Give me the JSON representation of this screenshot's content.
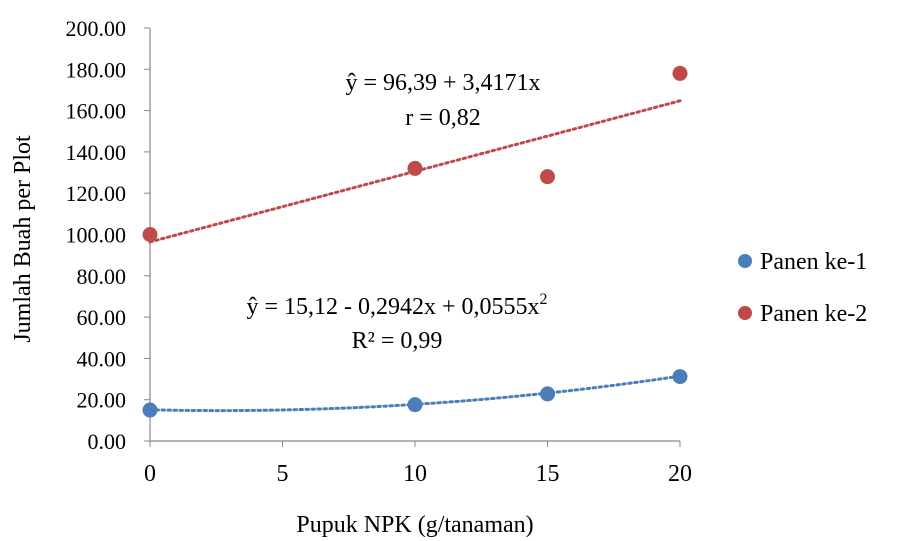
{
  "chart_data": {
    "type": "scatter",
    "xlabel": "Pupuk NPK (g/tanaman)",
    "ylabel": "Jumlah Buah per Plot",
    "xlim": [
      0,
      20
    ],
    "ylim": [
      0,
      200
    ],
    "x_ticks": [
      0,
      5,
      10,
      15,
      20
    ],
    "y_ticks": [
      0,
      20,
      40,
      60,
      80,
      100,
      120,
      140,
      160,
      180,
      200
    ],
    "x_tick_labels": [
      "0",
      "5",
      "10",
      "15",
      "20"
    ],
    "y_tick_labels": [
      "0.00",
      "20.00",
      "40.00",
      "60.00",
      "80.00",
      "100.00",
      "120.00",
      "140.00",
      "160.00",
      "180.00",
      "200.00"
    ],
    "grid": false,
    "legend_position": "right",
    "series": [
      {
        "name": "Panen ke-1",
        "color": "#4a7ebb",
        "x": [
          0,
          10,
          15,
          20
        ],
        "y": [
          15.0,
          17.6,
          22.8,
          31.2
        ],
        "trendline": {
          "type": "polynomial",
          "coefficients": [
            15.12,
            -0.2942,
            0.0555
          ],
          "style": "dotted"
        }
      },
      {
        "name": "Panen ke-2",
        "color": "#be4b48",
        "x": [
          0,
          10,
          15,
          20
        ],
        "y": [
          100.0,
          132.0,
          128.0,
          178.0
        ],
        "trendline": {
          "type": "linear",
          "coefficients": [
            96.39,
            3.4171
          ],
          "style": "dotted"
        }
      }
    ],
    "annotations": [
      {
        "id": "eq2",
        "text": "ŷ =  96,39 + 3,4171x"
      },
      {
        "id": "r2",
        "text": "r = 0,82"
      },
      {
        "id": "eq1",
        "text": "ŷ =  15,12 - 0,2942x + 0,0555x",
        "superscript": "2"
      },
      {
        "id": "r1",
        "text": "R² = 0,99"
      }
    ]
  }
}
